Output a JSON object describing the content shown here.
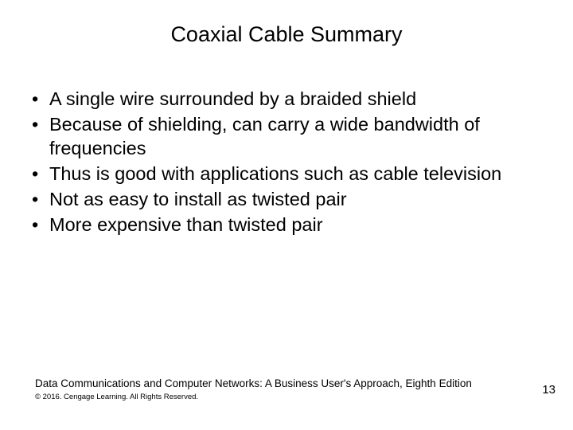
{
  "title": "Coaxial Cable Summary",
  "bullets": [
    "A single wire surrounded by a braided shield",
    "Because of shielding, can carry a wide bandwidth of frequencies",
    "Thus is good with applications such as cable television",
    "Not as easy to install as twisted pair",
    "More expensive than twisted pair"
  ],
  "footer": {
    "source": "Data Communications and Computer Networks: A Business User's Approach, Eighth Edition",
    "copyright": "© 2016. Cengage Learning. All Rights Reserved."
  },
  "page_number": "13",
  "colors": {
    "background": "#ffffff",
    "text": "#000000"
  }
}
